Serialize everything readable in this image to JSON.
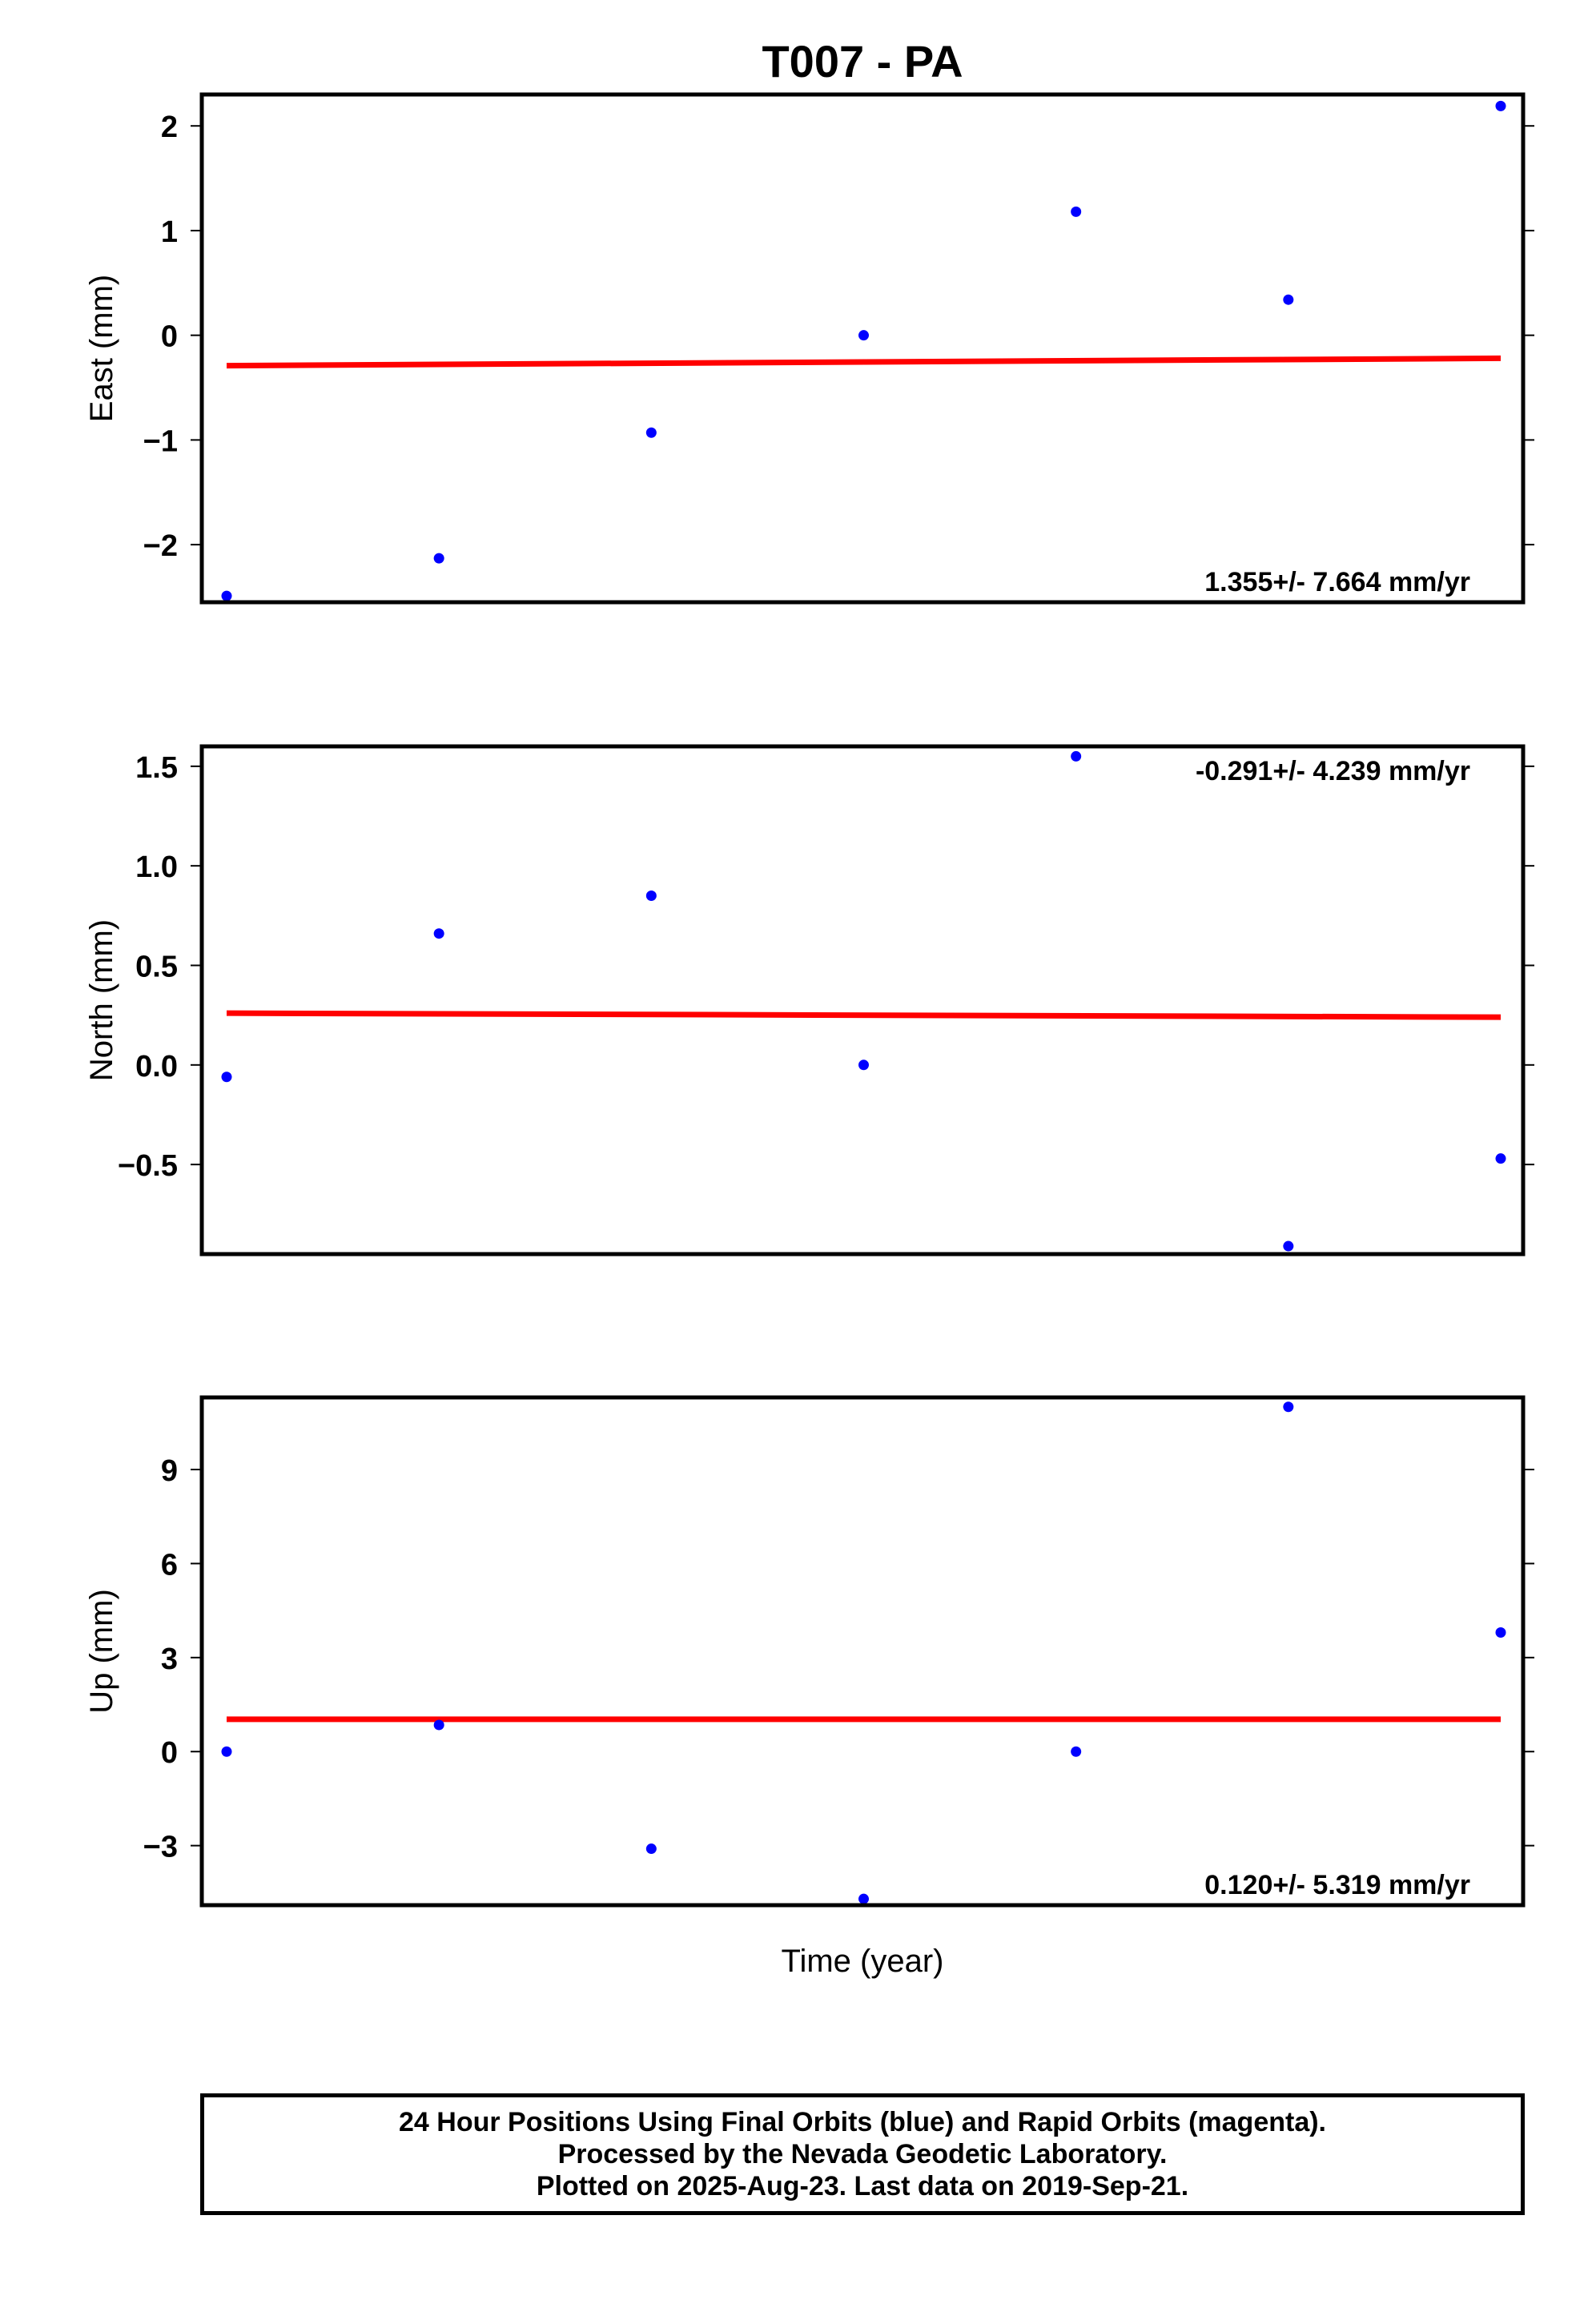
{
  "title": "T007 - PA",
  "xlabel": "Time (year)",
  "colors": {
    "points": "#0000ff",
    "trend": "#ff0000",
    "frame": "#000000"
  },
  "chart_data": [
    {
      "type": "scatter",
      "name": "east",
      "ylabel": "East (mm)",
      "rate_label": "1.355+/- 7.664 mm/yr",
      "rate_position": "bottom-right",
      "ylim": [
        -2.55,
        2.3
      ],
      "yticks": [
        2,
        1,
        0,
        -1,
        -2
      ],
      "ytick_labels": [
        "2",
        "1",
        "0",
        "−1",
        "−2"
      ],
      "x": [
        0,
        1,
        2,
        3,
        4,
        5,
        6
      ],
      "values": [
        -2.49,
        -2.13,
        -0.93,
        0.0,
        1.18,
        0.34,
        2.19
      ],
      "trend": [
        -0.29,
        -0.22
      ]
    },
    {
      "type": "scatter",
      "name": "north",
      "ylabel": "North (mm)",
      "rate_label": "-0.291+/- 4.239 mm/yr",
      "rate_position": "top-right",
      "ylim": [
        -0.95,
        1.6
      ],
      "yticks": [
        1.5,
        1.0,
        0.5,
        0.0,
        -0.5
      ],
      "ytick_labels": [
        "1.5",
        "1.0",
        "0.5",
        "0.0",
        "−0.5"
      ],
      "x": [
        0,
        1,
        2,
        3,
        4,
        5,
        6
      ],
      "values": [
        -0.06,
        0.66,
        0.85,
        0.0,
        1.55,
        -0.91,
        -0.47
      ],
      "trend": [
        0.26,
        0.24
      ]
    },
    {
      "type": "scatter",
      "name": "up",
      "ylabel": "Up (mm)",
      "rate_label": "0.120+/- 5.319 mm/yr",
      "rate_position": "bottom-right",
      "ylim": [
        -4.9,
        11.3
      ],
      "yticks": [
        9,
        6,
        3,
        0,
        -3
      ],
      "ytick_labels": [
        "9",
        "6",
        "3",
        "0",
        "−3"
      ],
      "x": [
        0,
        1,
        2,
        3,
        4,
        5,
        6
      ],
      "values": [
        0.0,
        0.85,
        -3.1,
        -4.7,
        0.0,
        11.0,
        3.8
      ],
      "trend": [
        1.03,
        1.03
      ]
    }
  ],
  "footer": {
    "line1": "24 Hour Positions Using Final Orbits (blue) and Rapid Orbits (magenta).",
    "line2": "Processed by the Nevada Geodetic Laboratory.",
    "line3": "Plotted on 2025-Aug-23. Last data on 2019-Sep-21."
  }
}
